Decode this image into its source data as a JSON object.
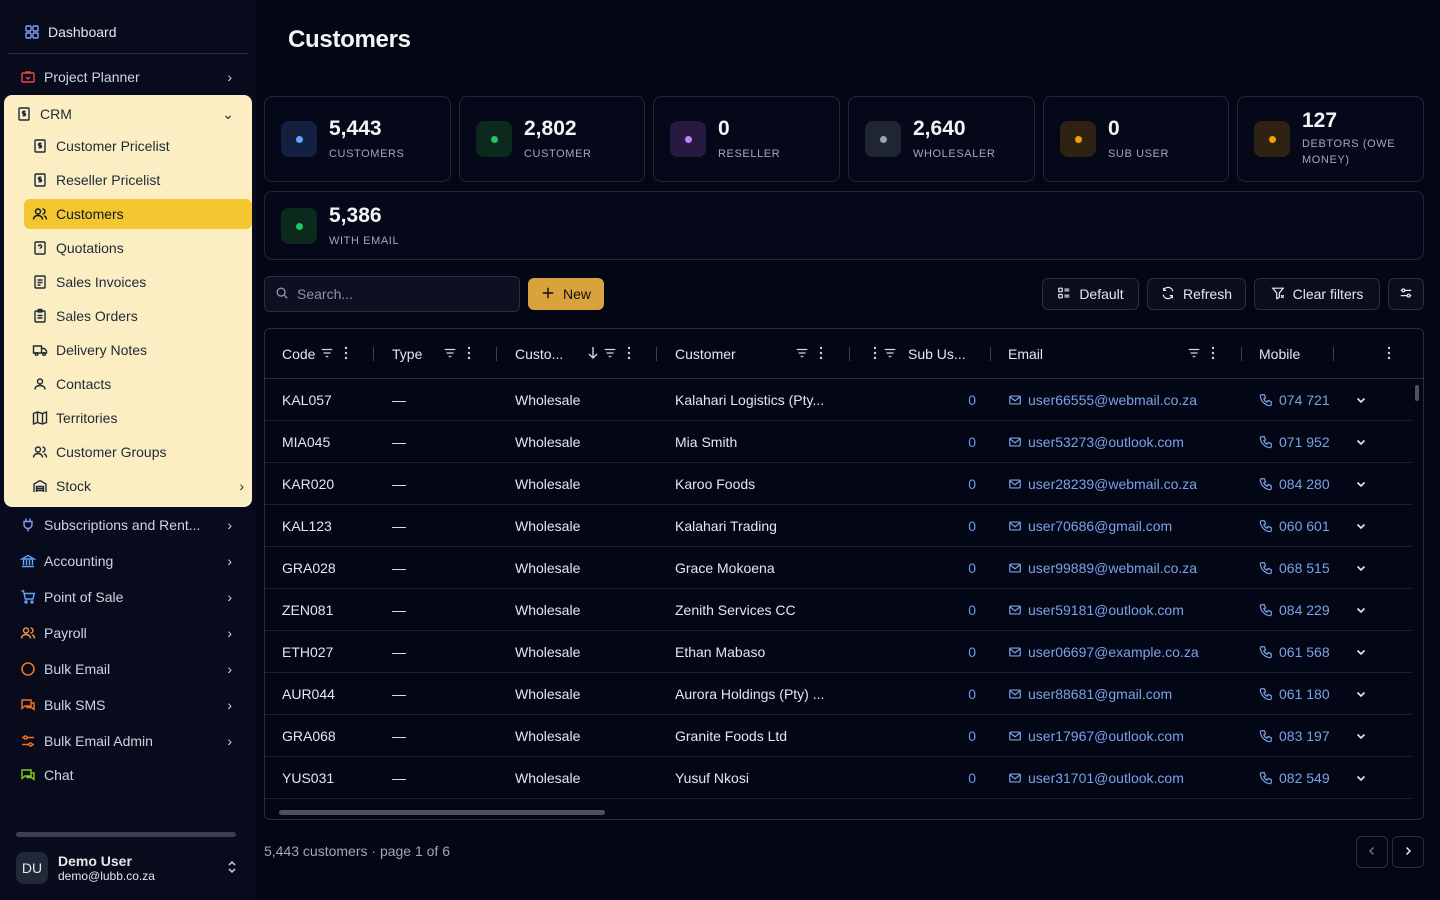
{
  "sidebar": {
    "dashboard_label": "Dashboard",
    "items_top": [
      {
        "label": "Project Planner",
        "icon": "briefcase-icon",
        "color": "#ef4444"
      }
    ],
    "crm": {
      "label": "CRM",
      "sub_items": [
        {
          "label": "Customer Pricelist",
          "icon": "file-dollar-icon"
        },
        {
          "label": "Reseller Pricelist",
          "icon": "file-dollar-icon"
        },
        {
          "label": "Customers",
          "icon": "users-icon",
          "active": true
        },
        {
          "label": "Quotations",
          "icon": "file-question-icon"
        },
        {
          "label": "Sales Invoices",
          "icon": "file-text-icon"
        },
        {
          "label": "Sales Orders",
          "icon": "clipboard-icon"
        },
        {
          "label": "Delivery Notes",
          "icon": "truck-icon"
        },
        {
          "label": "Contacts",
          "icon": "user-icon"
        },
        {
          "label": "Territories",
          "icon": "map-icon"
        },
        {
          "label": "Customer Groups",
          "icon": "users-icon"
        },
        {
          "label": "Stock",
          "icon": "warehouse-icon"
        }
      ]
    },
    "items_bottom": [
      {
        "label": "Subscriptions and Rent...",
        "icon": "plug-icon",
        "color": "#8b9cf6"
      },
      {
        "label": "Accounting",
        "icon": "bank-icon",
        "color": "#60a5fa"
      },
      {
        "label": "Point of Sale",
        "icon": "cart-icon",
        "color": "#60a5fa"
      },
      {
        "label": "Payroll",
        "icon": "users-icon",
        "color": "#fb923c"
      },
      {
        "label": "Bulk Email",
        "icon": "circle-icon",
        "color": "#f97316"
      },
      {
        "label": "Bulk SMS",
        "icon": "chat-icon",
        "color": "#f97316"
      },
      {
        "label": "Bulk Email Admin",
        "icon": "sliders-icon",
        "color": "#f97316"
      },
      {
        "label": "Chat",
        "icon": "chat-icon",
        "color": "#84cc16"
      }
    ],
    "user": {
      "initials": "DU",
      "name": "Demo User",
      "email": "demo@lubb.co.za"
    }
  },
  "page": {
    "title": "Customers"
  },
  "stats": [
    {
      "value": "5,443",
      "label": "CUSTOMERS",
      "color": "#60a5fa",
      "bg": "#13203f"
    },
    {
      "value": "2,802",
      "label": "CUSTOMER",
      "color": "#22c55e",
      "bg": "#0b2a1d"
    },
    {
      "value": "0",
      "label": "RESELLER",
      "color": "#c084fc",
      "bg": "#271a42"
    },
    {
      "value": "2,640",
      "label": "WHOLESALER",
      "color": "#9ca3af",
      "bg": "#1f2533"
    },
    {
      "value": "0",
      "label": "SUB USER",
      "color": "#f59e0b",
      "bg": "#2e2312"
    },
    {
      "value": "127",
      "label": "DEBTORS (OWE MONEY)",
      "color": "#f59e0b",
      "bg": "#2e2312"
    },
    {
      "value": "5,386",
      "label": "WITH EMAIL",
      "color": "#22c55e",
      "bg": "#0b2a1d"
    }
  ],
  "toolbar": {
    "search_placeholder": "Search...",
    "new_label": "New",
    "default_label": "Default",
    "refresh_label": "Refresh",
    "clear_filters_label": "Clear filters"
  },
  "table": {
    "columns": [
      "Code",
      "Type",
      "Custo...",
      "Customer",
      "Sub Us...",
      "Email",
      "Mobile"
    ],
    "rows": [
      {
        "code": "KAL057",
        "type": "—",
        "category": "Wholesale",
        "customer": "Kalahari Logistics (Pty...",
        "sub_users": "0",
        "email": "user66555@webmail.co.za",
        "mobile": "074 721"
      },
      {
        "code": "MIA045",
        "type": "—",
        "category": "Wholesale",
        "customer": "Mia Smith",
        "sub_users": "0",
        "email": "user53273@outlook.com",
        "mobile": "071 952"
      },
      {
        "code": "KAR020",
        "type": "—",
        "category": "Wholesale",
        "customer": "Karoo Foods",
        "sub_users": "0",
        "email": "user28239@webmail.co.za",
        "mobile": "084 280"
      },
      {
        "code": "KAL123",
        "type": "—",
        "category": "Wholesale",
        "customer": "Kalahari Trading",
        "sub_users": "0",
        "email": "user70686@gmail.com",
        "mobile": "060 601"
      },
      {
        "code": "GRA028",
        "type": "—",
        "category": "Wholesale",
        "customer": "Grace Mokoena",
        "sub_users": "0",
        "email": "user99889@webmail.co.za",
        "mobile": "068 515"
      },
      {
        "code": "ZEN081",
        "type": "—",
        "category": "Wholesale",
        "customer": "Zenith Services CC",
        "sub_users": "0",
        "email": "user59181@outlook.com",
        "mobile": "084 229"
      },
      {
        "code": "ETH027",
        "type": "—",
        "category": "Wholesale",
        "customer": "Ethan Mabaso",
        "sub_users": "0",
        "email": "user06697@example.co.za",
        "mobile": "061 568"
      },
      {
        "code": "AUR044",
        "type": "—",
        "category": "Wholesale",
        "customer": "Aurora Holdings (Pty) ...",
        "sub_users": "0",
        "email": "user88681@gmail.com",
        "mobile": "061 180"
      },
      {
        "code": "GRA068",
        "type": "—",
        "category": "Wholesale",
        "customer": "Granite Foods Ltd",
        "sub_users": "0",
        "email": "user17967@outlook.com",
        "mobile": "083 197"
      },
      {
        "code": "YUS031",
        "type": "—",
        "category": "Wholesale",
        "customer": "Yusuf Nkosi",
        "sub_users": "0",
        "email": "user31701@outlook.com",
        "mobile": "082 549"
      }
    ]
  },
  "footer": {
    "summary": "5,443 customers · page 1 of 6"
  }
}
